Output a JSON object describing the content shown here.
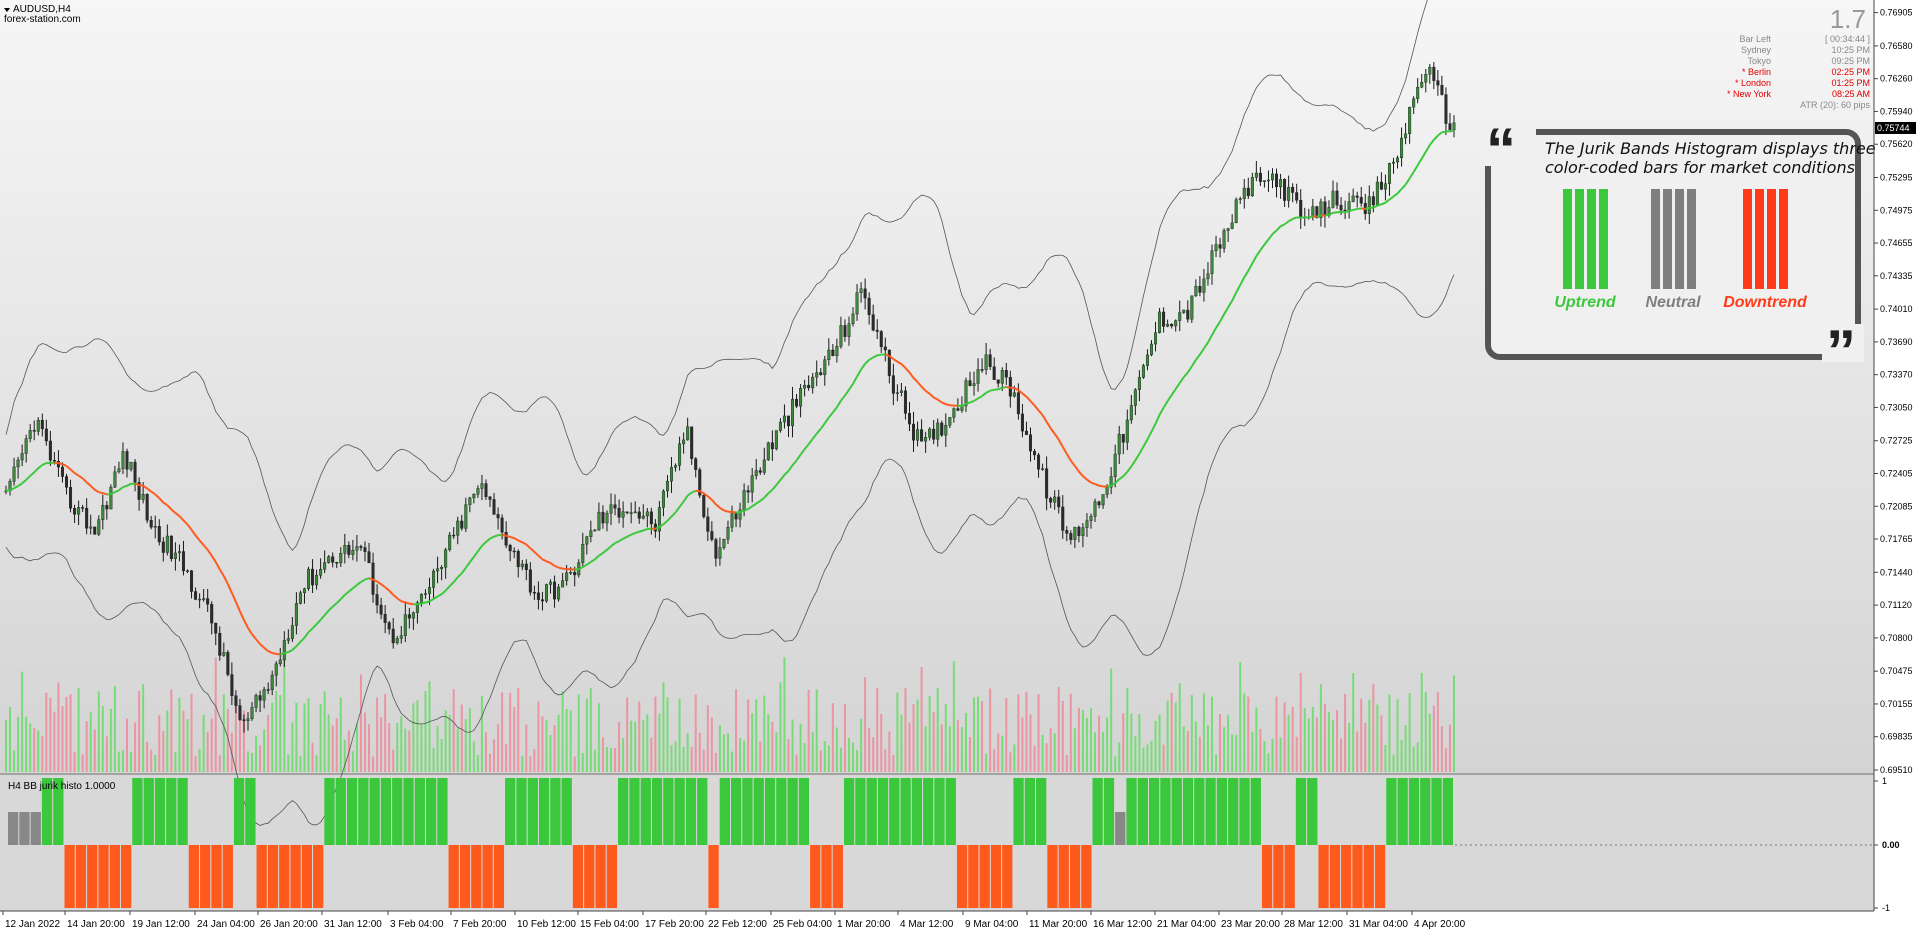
{
  "window": {
    "symbol": "AUDUSD,H4",
    "broker": "forex-station.com"
  },
  "info_panel": {
    "spread": "1.7",
    "rows": [
      {
        "label": "Bar Left",
        "value": "[ 00:34:44 ]",
        "highlight": false
      },
      {
        "label": "Sydney",
        "value": "10:25 PM",
        "highlight": false
      },
      {
        "label": "Tokyo",
        "value": "09:25 PM",
        "highlight": false
      },
      {
        "label": "* Berlin",
        "value": "02:25 PM",
        "highlight": true
      },
      {
        "label": "* London",
        "value": "01:25 PM",
        "highlight": true
      },
      {
        "label": "* New York",
        "value": "08:25 AM",
        "highlight": true
      }
    ],
    "atr": "ATR (20): 60 pips"
  },
  "current_price": "0.75744",
  "price_axis": [
    "0.76905",
    "0.76580",
    "0.76260",
    "0.75940",
    "0.75620",
    "0.75295",
    "0.74975",
    "0.74655",
    "0.74335",
    "0.74010",
    "0.73690",
    "0.73370",
    "0.73050",
    "0.72725",
    "0.72405",
    "0.72085",
    "0.71765",
    "0.71440",
    "0.71120",
    "0.70800",
    "0.70475",
    "0.70155",
    "0.69835",
    "0.69510"
  ],
  "time_axis": [
    "12 Jan 2022",
    "14 Jan 20:00",
    "19 Jan 12:00",
    "24 Jan 04:00",
    "26 Jan 20:00",
    "31 Jan 12:00",
    "3 Feb 04:00",
    "7 Feb 20:00",
    "10 Feb 12:00",
    "15 Feb 04:00",
    "17 Feb 20:00",
    "22 Feb 12:00",
    "25 Feb 04:00",
    "1 Mar 20:00",
    "4 Mar 12:00",
    "9 Mar 04:00",
    "11 Mar 20:00",
    "16 Mar 12:00",
    "21 Mar 04:00",
    "23 Mar 20:00",
    "28 Mar 12:00",
    "31 Mar 04:00",
    "4 Apr 20:00"
  ],
  "indicator": {
    "label": "H4  BB jurik histo  1.0000",
    "axis": [
      "1",
      "0.00",
      "-1"
    ]
  },
  "callout": {
    "quote_open": "“",
    "quote_close": "”",
    "text_line1": "The Jurik Bands Histogram displays three",
    "text_line2": "color-coded bars for market conditions",
    "legend": [
      {
        "label": "Uptrend",
        "color": "#3cc83c"
      },
      {
        "label": "Neutral",
        "color": "#7f7f7f"
      },
      {
        "label": "Downtrend",
        "color": "#ff3b1a"
      }
    ]
  },
  "colors": {
    "bull": "#3cc83c",
    "bear": "#ff5a1e",
    "neutral": "#888888",
    "candle": "#1f5a1f",
    "band": "#555555"
  },
  "chart_data": {
    "type": "candlestick",
    "price_range": [
      0.6951,
      0.7695
    ],
    "key_closes": [
      0.7215,
      0.7295,
      0.722,
      0.7185,
      0.726,
      0.7185,
      0.715,
      0.7095,
      0.699,
      0.704,
      0.713,
      0.716,
      0.717,
      0.708,
      0.711,
      0.717,
      0.723,
      0.7175,
      0.712,
      0.7135,
      0.7195,
      0.721,
      0.719,
      0.7285,
      0.716,
      0.722,
      0.7275,
      0.732,
      0.736,
      0.742,
      0.733,
      0.7265,
      0.73,
      0.735,
      0.7325,
      0.724,
      0.7175,
      0.7215,
      0.7295,
      0.739,
      0.74,
      0.746,
      0.752,
      0.753,
      0.7485,
      0.751,
      0.7495,
      0.7545,
      0.764,
      0.7575
    ],
    "histogram": {
      "states": [
        0,
        0,
        0,
        1,
        1,
        -1,
        -1,
        -1,
        -1,
        -1,
        -1,
        1,
        1,
        1,
        1,
        1,
        -1,
        -1,
        -1,
        -1,
        1,
        1,
        -1,
        -1,
        -1,
        -1,
        -1,
        -1,
        1,
        1,
        1,
        1,
        1,
        1,
        1,
        1,
        1,
        1,
        1,
        -1,
        -1,
        -1,
        -1,
        -1,
        1,
        1,
        1,
        1,
        1,
        1,
        -1,
        -1,
        -1,
        -1,
        1,
        1,
        1,
        1,
        1,
        1,
        1,
        1,
        -1,
        1,
        1,
        1,
        1,
        1,
        1,
        1,
        1,
        -1,
        -1,
        -1,
        1,
        1,
        1,
        1,
        1,
        1,
        1,
        1,
        1,
        1,
        -1,
        -1,
        -1,
        -1,
        -1,
        1,
        1,
        1,
        -1,
        -1,
        -1,
        -1,
        1,
        1,
        0,
        1,
        1,
        1,
        1,
        1,
        1,
        1,
        1,
        1,
        1,
        1,
        1,
        -1,
        -1,
        -1,
        1,
        1,
        -1,
        -1,
        -1,
        -1,
        -1,
        -1,
        1,
        1,
        1,
        1,
        1,
        1
      ],
      "values_range": [
        -1,
        1
      ]
    }
  }
}
